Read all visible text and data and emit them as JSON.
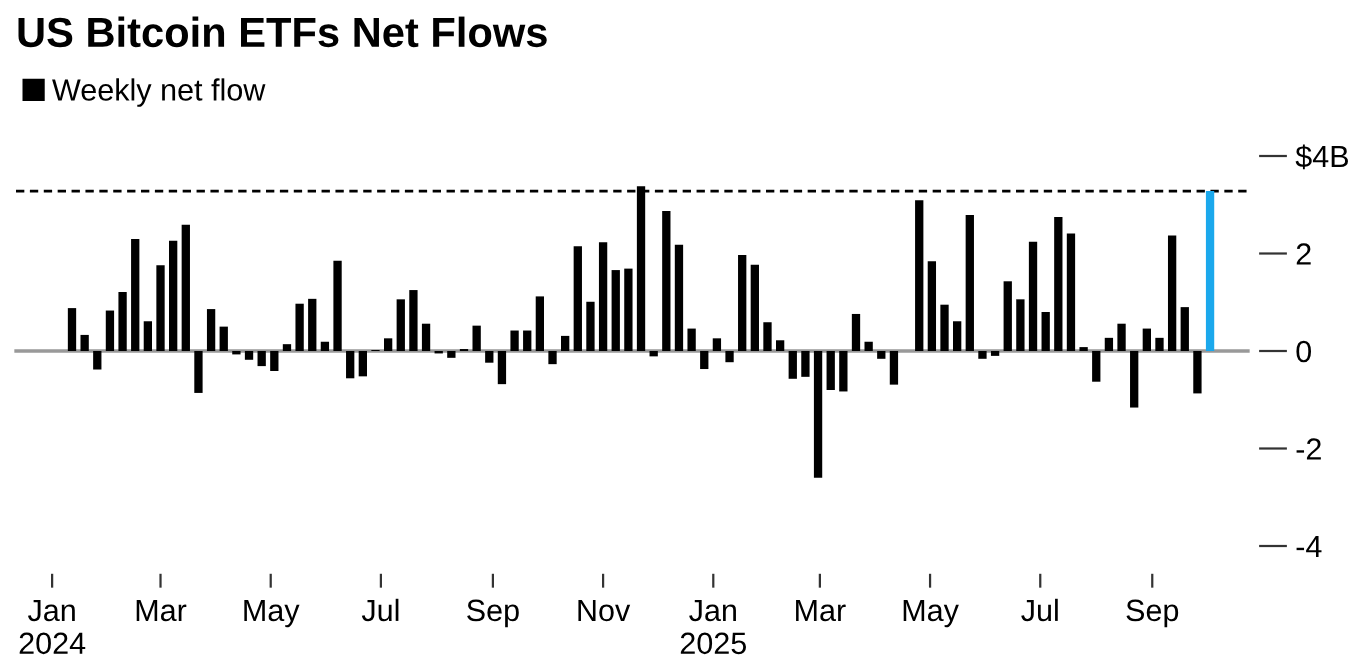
{
  "chart_data": {
    "type": "bar",
    "title": "US Bitcoin ETFs Net Flows",
    "x": [
      "2024-01-12",
      "2024-01-19",
      "2024-01-26",
      "2024-02-02",
      "2024-02-09",
      "2024-02-16",
      "2024-02-23",
      "2024-03-01",
      "2024-03-08",
      "2024-03-15",
      "2024-03-22",
      "2024-03-29",
      "2024-04-05",
      "2024-04-12",
      "2024-04-19",
      "2024-04-26",
      "2024-05-03",
      "2024-05-10",
      "2024-05-17",
      "2024-05-24",
      "2024-05-31",
      "2024-06-07",
      "2024-06-14",
      "2024-06-21",
      "2024-06-28",
      "2024-07-05",
      "2024-07-12",
      "2024-07-19",
      "2024-07-26",
      "2024-08-02",
      "2024-08-09",
      "2024-08-16",
      "2024-08-23",
      "2024-08-30",
      "2024-09-06",
      "2024-09-13",
      "2024-09-20",
      "2024-09-27",
      "2024-10-04",
      "2024-10-11",
      "2024-10-18",
      "2024-10-25",
      "2024-11-01",
      "2024-11-08",
      "2024-11-15",
      "2024-11-22",
      "2024-11-29",
      "2024-12-06",
      "2024-12-13",
      "2024-12-20",
      "2024-12-27",
      "2025-01-03",
      "2025-01-10",
      "2025-01-17",
      "2025-01-24",
      "2025-01-31",
      "2025-02-07",
      "2025-02-14",
      "2025-02-21",
      "2025-02-28",
      "2025-03-07",
      "2025-03-14",
      "2025-03-21",
      "2025-03-28",
      "2025-04-04",
      "2025-04-11",
      "2025-04-18",
      "2025-04-25",
      "2025-05-02",
      "2025-05-09",
      "2025-05-16",
      "2025-05-23",
      "2025-05-30",
      "2025-06-06",
      "2025-06-13",
      "2025-06-20",
      "2025-06-27",
      "2025-07-04",
      "2025-07-11",
      "2025-07-18",
      "2025-07-25",
      "2025-08-01",
      "2025-08-08",
      "2025-08-15",
      "2025-08-22",
      "2025-08-29",
      "2025-09-05",
      "2025-09-12",
      "2025-09-19",
      "2025-09-26",
      "2025-10-03"
    ],
    "series": [
      {
        "name": "Weekly net flow",
        "values": [
          0.88,
          0.33,
          -0.38,
          0.83,
          1.21,
          2.3,
          0.61,
          1.76,
          2.26,
          2.59,
          -0.86,
          0.86,
          0.5,
          -0.07,
          -0.18,
          -0.31,
          -0.41,
          0.14,
          0.97,
          1.07,
          0.19,
          1.85,
          -0.56,
          -0.52,
          0.02,
          0.26,
          1.06,
          1.25,
          0.56,
          -0.05,
          -0.14,
          0.04,
          0.52,
          -0.24,
          -0.68,
          0.42,
          0.42,
          1.12,
          -0.27,
          0.31,
          2.15,
          1.01,
          2.23,
          1.66,
          1.69,
          3.38,
          -0.11,
          2.87,
          2.18,
          0.46,
          -0.37,
          0.26,
          -0.23,
          1.97,
          1.77,
          0.59,
          0.22,
          -0.57,
          -0.53,
          -2.6,
          -0.8,
          -0.83,
          0.76,
          0.19,
          -0.16,
          -0.69,
          null,
          3.09,
          1.84,
          0.95,
          0.61,
          2.79,
          -0.16,
          -0.1,
          1.43,
          1.06,
          2.24,
          0.8,
          2.75,
          2.41,
          0.08,
          -0.63,
          0.27,
          0.56,
          -1.16,
          0.46,
          0.27,
          2.37,
          0.9,
          -0.87,
          3.28
        ]
      }
    ],
    "colors": [
      "#000000",
      "#000000",
      "#000000",
      "#000000",
      "#000000",
      "#000000",
      "#000000",
      "#000000",
      "#000000",
      "#000000",
      "#000000",
      "#000000",
      "#000000",
      "#000000",
      "#000000",
      "#000000",
      "#000000",
      "#000000",
      "#000000",
      "#000000",
      "#000000",
      "#000000",
      "#000000",
      "#000000",
      "#000000",
      "#000000",
      "#000000",
      "#000000",
      "#000000",
      "#000000",
      "#000000",
      "#000000",
      "#000000",
      "#000000",
      "#000000",
      "#000000",
      "#000000",
      "#000000",
      "#000000",
      "#000000",
      "#000000",
      "#000000",
      "#000000",
      "#000000",
      "#000000",
      "#000000",
      "#000000",
      "#000000",
      "#000000",
      "#000000",
      "#000000",
      "#000000",
      "#000000",
      "#000000",
      "#000000",
      "#000000",
      "#000000",
      "#000000",
      "#000000",
      "#000000",
      "#000000",
      "#000000",
      "#000000",
      "#000000",
      "#000000",
      "#000000",
      "#000000",
      "#000000",
      "#000000",
      "#000000",
      "#000000",
      "#000000",
      "#000000",
      "#000000",
      "#000000",
      "#000000",
      "#000000",
      "#000000",
      "#000000",
      "#000000",
      "#000000",
      "#000000",
      "#000000",
      "#000000",
      "#000000",
      "#000000",
      "#000000",
      "#000000",
      "#000000",
      "#000000",
      "#1ba8ec"
    ],
    "xlim": [
      "2023-12-12",
      "2025-10-24"
    ],
    "xticks": [
      {
        "value": "2024-01-01",
        "label": "Jan\n2024"
      },
      {
        "value": "2024-03-01",
        "label": "Mar"
      },
      {
        "value": "2024-05-01",
        "label": "May"
      },
      {
        "value": "2024-07-01",
        "label": "Jul"
      },
      {
        "value": "2024-09-01",
        "label": "Sep"
      },
      {
        "value": "2024-11-01",
        "label": "Nov"
      },
      {
        "value": "2025-01-01",
        "label": "Jan\n2025"
      },
      {
        "value": "2025-03-01",
        "label": "Mar"
      },
      {
        "value": "2025-05-01",
        "label": "May"
      },
      {
        "value": "2025-07-01",
        "label": "Jul"
      },
      {
        "value": "2025-09-01",
        "label": "Sep"
      }
    ],
    "ylim": [
      -4,
      4
    ],
    "yticks": [
      {
        "value": 4,
        "label": "$4B"
      },
      2,
      0,
      -2,
      -4
    ],
    "ref_lines": [
      {
        "axis": "y",
        "value": 3.28,
        "label": null,
        "color": "#000000",
        "line_style": "dashed"
      }
    ],
    "legend": "top left"
  }
}
